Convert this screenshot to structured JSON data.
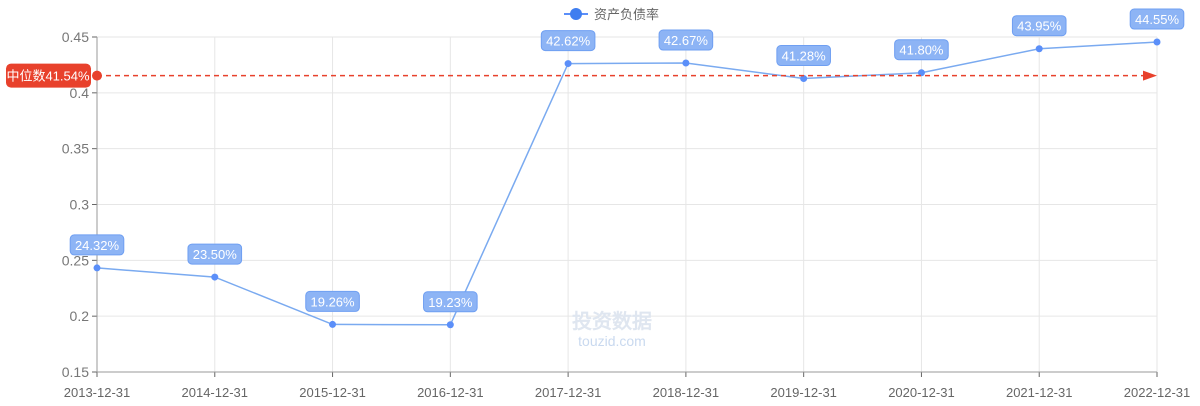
{
  "chart_data": {
    "type": "line",
    "legend": {
      "entries": [
        "资产负债率"
      ],
      "placement": "top-center"
    },
    "categories": [
      "2013-12-31",
      "2014-12-31",
      "2015-12-31",
      "2016-12-31",
      "2017-12-31",
      "2018-12-31",
      "2019-12-31",
      "2020-12-31",
      "2021-12-31",
      "2022-12-31"
    ],
    "series": [
      {
        "name": "资产负债率",
        "values": [
          0.2432,
          0.235,
          0.1926,
          0.1923,
          0.4262,
          0.4267,
          0.4128,
          0.418,
          0.4395,
          0.4455
        ],
        "labels": [
          "24.32%",
          "23.50%",
          "19.26%",
          "19.23%",
          "42.62%",
          "42.67%",
          "41.28%",
          "41.80%",
          "43.95%",
          "44.55%"
        ]
      }
    ],
    "yticks": [
      "0.15",
      "0.2",
      "0.25",
      "0.3",
      "0.35",
      "0.4",
      "0.45"
    ],
    "ylim": [
      0.15,
      0.45
    ],
    "grid": true,
    "markline": {
      "label": "中位数41.54%",
      "value": 0.4154
    },
    "colors": {
      "line": "#7aaaf0",
      "point": "#5b8ff9",
      "label_bg": "#8db4f5",
      "markline": "#e8412c"
    },
    "watermark": {
      "line1": "投资数据",
      "line2": "touzid.com"
    }
  }
}
